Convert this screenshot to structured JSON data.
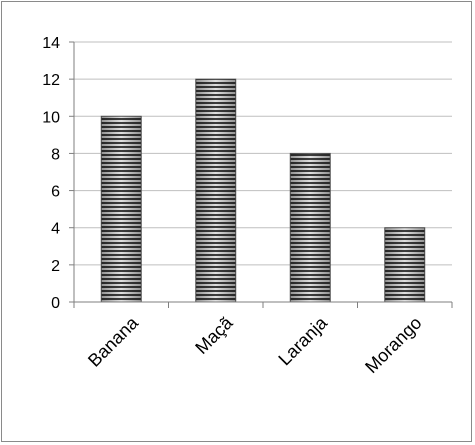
{
  "chart_data": {
    "type": "bar",
    "categories": [
      "Banana",
      "Maçã",
      "Laranja",
      "Morango"
    ],
    "values": [
      10,
      12,
      8,
      4
    ],
    "title": "",
    "xlabel": "",
    "ylabel": "",
    "ylim": [
      0,
      14
    ],
    "yticks": [
      0,
      2,
      4,
      6,
      8,
      10,
      12,
      14
    ],
    "grid": "horizontal",
    "bar_style": "horizontal-stripes",
    "colors": {
      "bar_stripe_dark": "#3c3c3c",
      "bar_stripe_light": "#e0e0e0",
      "gridline": "#bfbfbf",
      "axis": "#7f7f7f"
    }
  }
}
